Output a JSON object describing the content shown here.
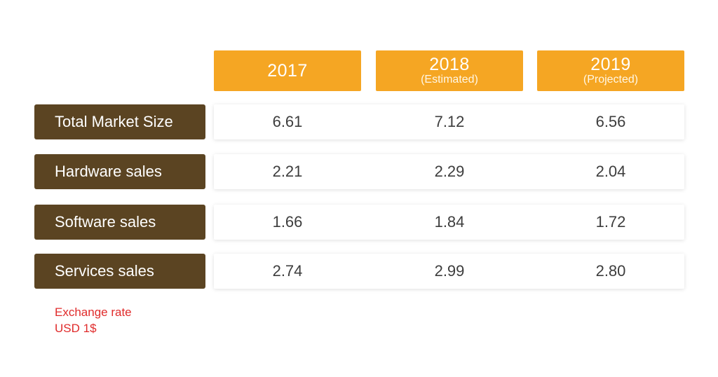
{
  "chart_data": {
    "type": "table",
    "columns": [
      {
        "year": "2017",
        "note": ""
      },
      {
        "year": "2018",
        "note": "(Estimated)"
      },
      {
        "year": "2019",
        "note": "(Projected)"
      }
    ],
    "rows": [
      {
        "label": "Total Market Size",
        "values": [
          "6.61",
          "7.12",
          "6.56"
        ]
      },
      {
        "label": "Hardware sales",
        "values": [
          "2.21",
          "2.29",
          "2.04"
        ]
      },
      {
        "label": "Software sales",
        "values": [
          "1.66",
          "1.84",
          "1.72"
        ]
      },
      {
        "label": "Services sales",
        "values": [
          "2.74",
          "2.99",
          "2.80"
        ]
      }
    ],
    "footnote": {
      "line1": "Exchange rate",
      "line2": "USD 1$"
    }
  },
  "colors": {
    "header_bg": "#f5a623",
    "label_bg": "#5b4422",
    "footnote": "#e02b2b"
  }
}
